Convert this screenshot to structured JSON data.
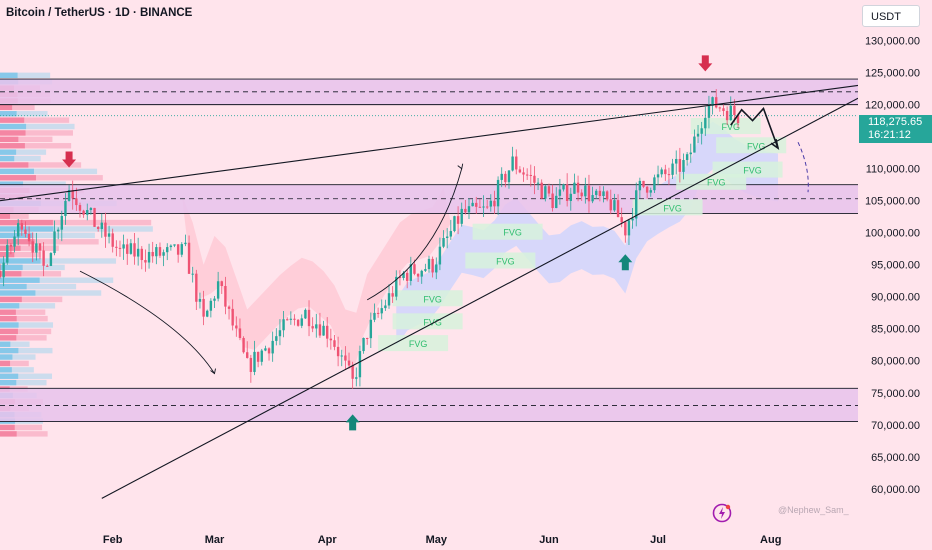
{
  "header": {
    "symbol_title": "Bitcoin / TetherUS · 1D · BINANCE",
    "currency_label": "USDT"
  },
  "price_tag": {
    "price": "118,275.65",
    "countdown": "16:21:12"
  },
  "watermark": "@Nephew_Sam_",
  "colors": {
    "background": "#ffe4ec",
    "zone_fill": "#e8c3ec",
    "up_candle": "#26a69a",
    "down_candle": "#ef5373",
    "arrow_red": "#d62f4f",
    "arrow_green": "#13877a",
    "fvg_fill": "#d7f2dc",
    "fvg_text": "#2ebd6e",
    "cloud_blue": "#c9d3ff",
    "cloud_red": "#ffc8d4"
  },
  "chart_data": {
    "type": "candlestick",
    "y_axis": {
      "min": 57000,
      "max": 134000,
      "ticks": [
        {
          "value": 130000,
          "label": "130,000.00"
        },
        {
          "value": 125000,
          "label": "125,000.00"
        },
        {
          "value": 120000,
          "label": "120,000.00"
        },
        {
          "value": 110000,
          "label": "110,000.00"
        },
        {
          "value": 105000,
          "label": "105,000.00"
        },
        {
          "value": 100000,
          "label": "100,000.00"
        },
        {
          "value": 95000,
          "label": "95,000.00"
        },
        {
          "value": 90000,
          "label": "90,000.00"
        },
        {
          "value": 85000,
          "label": "85,000.00"
        },
        {
          "value": 80000,
          "label": "80,000.00"
        },
        {
          "value": 75000,
          "label": "75,000.00"
        },
        {
          "value": 70000,
          "label": "70,000.00"
        },
        {
          "value": 65000,
          "label": "65,000.00"
        },
        {
          "value": 60000,
          "label": "60,000.00"
        }
      ]
    },
    "x_axis": {
      "start": "2025-01-01",
      "end": "2025-08-25",
      "ticks": [
        {
          "date": "2025-02-01",
          "label": "Feb"
        },
        {
          "date": "2025-03-01",
          "label": "Mar"
        },
        {
          "date": "2025-04-01",
          "label": "Apr"
        },
        {
          "date": "2025-05-01",
          "label": "May"
        },
        {
          "date": "2025-06-01",
          "label": "Jun"
        },
        {
          "date": "2025-07-01",
          "label": "Jul"
        },
        {
          "date": "2025-08-01",
          "label": "Aug"
        }
      ]
    },
    "last_date": "2025-07-23",
    "price_path": [
      {
        "date": "2025-01-01",
        "price": 94000
      },
      {
        "date": "2025-01-07",
        "price": 102000
      },
      {
        "date": "2025-01-13",
        "price": 94500
      },
      {
        "date": "2025-01-20",
        "price": 107000
      },
      {
        "date": "2025-01-27",
        "price": 101500
      },
      {
        "date": "2025-02-03",
        "price": 97000
      },
      {
        "date": "2025-02-12",
        "price": 96500
      },
      {
        "date": "2025-02-21",
        "price": 97000
      },
      {
        "date": "2025-02-26",
        "price": 86000
      },
      {
        "date": "2025-03-02",
        "price": 92000
      },
      {
        "date": "2025-03-10",
        "price": 79000
      },
      {
        "date": "2025-03-20",
        "price": 85000
      },
      {
        "date": "2025-03-26",
        "price": 87500
      },
      {
        "date": "2025-04-02",
        "price": 84000
      },
      {
        "date": "2025-04-08",
        "price": 76500
      },
      {
        "date": "2025-04-12",
        "price": 84500
      },
      {
        "date": "2025-04-22",
        "price": 93500
      },
      {
        "date": "2025-04-30",
        "price": 95000
      },
      {
        "date": "2025-05-08",
        "price": 103000
      },
      {
        "date": "2025-05-15",
        "price": 103500
      },
      {
        "date": "2025-05-22",
        "price": 111000
      },
      {
        "date": "2025-05-27",
        "price": 108500
      },
      {
        "date": "2025-06-02",
        "price": 105000
      },
      {
        "date": "2025-06-09",
        "price": 107500
      },
      {
        "date": "2025-06-13",
        "price": 105500
      },
      {
        "date": "2025-06-18",
        "price": 104500
      },
      {
        "date": "2025-06-22",
        "price": 100500
      },
      {
        "date": "2025-06-26",
        "price": 107000
      },
      {
        "date": "2025-07-03",
        "price": 109000
      },
      {
        "date": "2025-07-09",
        "price": 111000
      },
      {
        "date": "2025-07-14",
        "price": 119500
      },
      {
        "date": "2025-07-17",
        "price": 120000
      },
      {
        "date": "2025-07-23",
        "price": 118275
      }
    ],
    "zones": [
      {
        "from": 120000,
        "to": 124000,
        "mid": 122000
      },
      {
        "from": 103000,
        "to": 107500,
        "mid": 105300
      },
      {
        "from": 70500,
        "to": 75700,
        "mid": 73000
      }
    ],
    "dotted_price_line": 118275,
    "trendlines": [
      {
        "from": {
          "date": "2025-01-01",
          "price": 105000
        },
        "to": {
          "date": "2025-08-25",
          "price": 123000
        }
      },
      {
        "from": {
          "date": "2025-01-29",
          "price": 58500
        },
        "to": {
          "date": "2025-08-25",
          "price": 121000
        }
      }
    ],
    "fvg_labels": [
      {
        "date": "2025-05-22",
        "price": 100000,
        "text": "FVG"
      },
      {
        "date": "2025-05-20",
        "price": 95500,
        "text": "FVG"
      },
      {
        "date": "2025-04-30",
        "price": 89600,
        "text": "FVG"
      },
      {
        "date": "2025-04-30",
        "price": 86000,
        "text": "FVG"
      },
      {
        "date": "2025-04-26",
        "price": 82600,
        "text": "FVG"
      },
      {
        "date": "2025-07-21",
        "price": 116500,
        "text": "FVG"
      },
      {
        "date": "2025-07-28",
        "price": 113500,
        "text": "FVG"
      },
      {
        "date": "2025-07-27",
        "price": 109700,
        "text": "FVG"
      },
      {
        "date": "2025-07-17",
        "price": 107800,
        "text": "FVG"
      },
      {
        "date": "2025-07-05",
        "price": 103800,
        "text": "FVG"
      }
    ],
    "markers": [
      {
        "type": "sell-arrow",
        "date": "2025-01-20",
        "price": 110500
      },
      {
        "type": "sell-arrow",
        "date": "2025-07-14",
        "price": 125500
      },
      {
        "type": "buy-arrow",
        "date": "2025-04-08",
        "price": 71000
      },
      {
        "type": "buy-arrow",
        "date": "2025-06-22",
        "price": 96000
      }
    ],
    "projection": [
      {
        "date": "2025-07-21",
        "price": 116800
      },
      {
        "date": "2025-07-24",
        "price": 119200
      },
      {
        "date": "2025-07-27",
        "price": 117500
      },
      {
        "date": "2025-07-30",
        "price": 119400
      },
      {
        "date": "2025-08-03",
        "price": 113200
      }
    ]
  }
}
